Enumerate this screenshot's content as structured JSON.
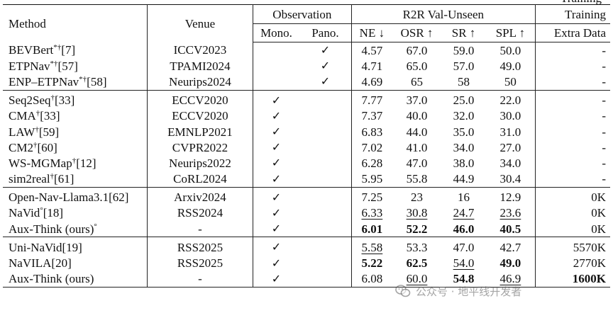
{
  "caption_fragment": "Training",
  "headers": {
    "method": "Method",
    "venue": "Venue",
    "observation": "Observation",
    "mono": "Mono.",
    "pano": "Pano.",
    "r2r": "R2R Val-Unseen",
    "ne": "NE ↓",
    "osr": "OSR ↑",
    "sr": "SR ↑",
    "spl": "SPL ↑",
    "training": "Training",
    "extra": "Extra Data"
  },
  "check_mark": "✓",
  "groups": [
    [
      {
        "name": "BEVBert",
        "sup": "*†",
        "ref": "[7]",
        "venue": "ICCV2023",
        "mono": "",
        "pano": "✓",
        "ne": "4.57",
        "osr": "67.0",
        "sr": "59.0",
        "spl": "50.0",
        "extra": "-"
      },
      {
        "name": "ETPNav",
        "sup": "*†",
        "ref": "[57]",
        "venue": "TPAMI2024",
        "mono": "",
        "pano": "✓",
        "ne": "4.71",
        "osr": "65.0",
        "sr": "57.0",
        "spl": "49.0",
        "extra": "-"
      },
      {
        "name": "ENP–ETPNav",
        "sup": "*†",
        "ref": "[58]",
        "venue": "Neurips2024",
        "mono": "",
        "pano": "✓",
        "ne": "4.69",
        "osr": "65",
        "sr": "58",
        "spl": "50",
        "extra": "-"
      }
    ],
    [
      {
        "name": "Seq2Seq",
        "sup": "†",
        "ref": "[33]",
        "venue": "ECCV2020",
        "mono": "✓",
        "pano": "",
        "ne": "7.77",
        "osr": "37.0",
        "sr": "25.0",
        "spl": "22.0",
        "extra": "-"
      },
      {
        "name": "CMA",
        "sup": "†",
        "ref": "[33]",
        "venue": "ECCV2020",
        "mono": "✓",
        "pano": "",
        "ne": "7.37",
        "osr": "40.0",
        "sr": "32.0",
        "spl": "30.0",
        "extra": "-"
      },
      {
        "name": "LAW",
        "sup": "†",
        "ref": "[59]",
        "venue": "EMNLP2021",
        "mono": "✓",
        "pano": "",
        "ne": "6.83",
        "osr": "44.0",
        "sr": "35.0",
        "spl": "31.0",
        "extra": "-"
      },
      {
        "name": "CM2",
        "sup": "†",
        "ref": "[60]",
        "venue": "CVPR2022",
        "mono": "✓",
        "pano": "",
        "ne": "7.02",
        "osr": "41.0",
        "sr": "34.0",
        "spl": "27.0",
        "extra": "-"
      },
      {
        "name": "WS-MGMap",
        "sup": "†",
        "ref": "[12]",
        "venue": "Neurips2022",
        "mono": "✓",
        "pano": "",
        "ne": "6.28",
        "osr": "47.0",
        "sr": "38.0",
        "spl": "34.0",
        "extra": "-"
      },
      {
        "name": "sim2real",
        "sup": "†",
        "ref": "[61]",
        "venue": "CoRL2024",
        "mono": "✓",
        "pano": "",
        "ne": "5.95",
        "osr": "55.8",
        "sr": "44.9",
        "spl": "30.4",
        "extra": "-"
      }
    ],
    [
      {
        "name": "Open-Nav-Llama3.1",
        "sup": "",
        "ref": "[62]",
        "venue": "Arxiv2024",
        "mono": "✓",
        "pano": "",
        "ne": "7.25",
        "osr": "23",
        "sr": "16",
        "spl": "12.9",
        "extra": "0K"
      },
      {
        "name": "NaVid",
        "sup": "°",
        "ref": "[18]",
        "venue": "RSS2024",
        "mono": "✓",
        "pano": "",
        "ne": "6.33",
        "osr": "30.8",
        "sr": "24.7",
        "spl": "23.6",
        "extra": "0K",
        "ne_u": true,
        "osr_u": true,
        "sr_u": true,
        "spl_u": true
      },
      {
        "name": "Aux-Think (ours)",
        "sup": "°",
        "ref": "",
        "venue": "-",
        "mono": "✓",
        "pano": "",
        "ne": "6.01",
        "osr": "52.2",
        "sr": "46.0",
        "spl": "40.5",
        "extra": "0K",
        "ne_b": true,
        "osr_b": true,
        "sr_b": true,
        "spl_b": true
      }
    ],
    [
      {
        "name": "Uni-NaVid",
        "sup": "",
        "ref": "[19]",
        "venue": "RSS2025",
        "mono": "✓",
        "pano": "",
        "ne": "5.58",
        "osr": "53.3",
        "sr": "47.0",
        "spl": "42.7",
        "extra": "5570K",
        "ne_u": true
      },
      {
        "name": "NaVILA",
        "sup": "",
        "ref": "[20]",
        "venue": "RSS2025",
        "mono": "✓",
        "pano": "",
        "ne": "5.22",
        "osr": "62.5",
        "sr": "54.0",
        "spl": "49.0",
        "extra": "2770K",
        "ne_b": true,
        "osr_b": true,
        "sr_u": true,
        "spl_b": true
      },
      {
        "name": "Aux-Think (ours)",
        "sup": "",
        "ref": "",
        "venue": "-",
        "mono": "✓",
        "pano": "",
        "ne": "6.08",
        "osr": "60.0",
        "sr": "54.8",
        "spl": "46.9",
        "extra": "1600K",
        "osr_u": true,
        "sr_b": true,
        "spl_u": true,
        "extra_b": true
      }
    ]
  ],
  "watermark": {
    "text": "公众号 · 地平线开发者"
  }
}
